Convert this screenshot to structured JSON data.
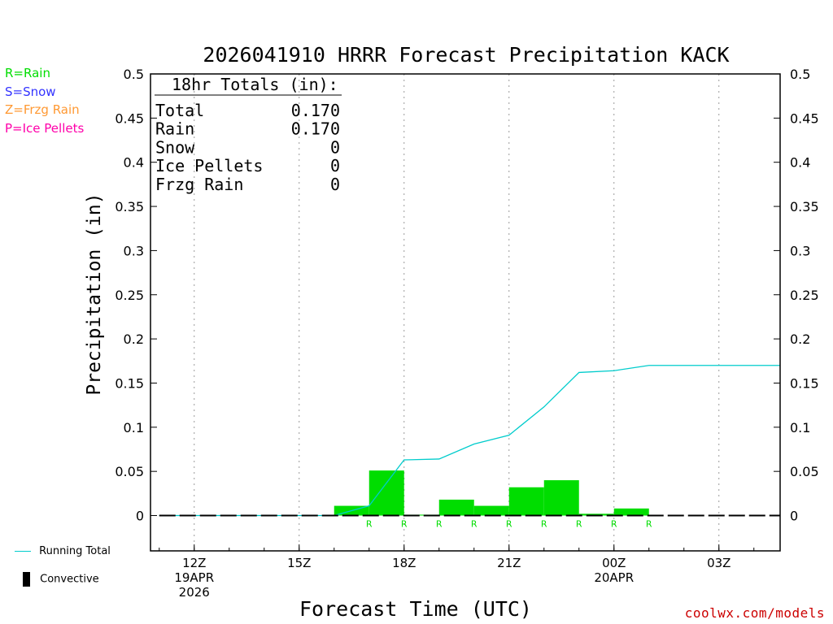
{
  "chart_data": {
    "type": "bar",
    "title": "2026041910 HRRR Forecast Precipitation KACK",
    "xlabel": "Forecast Time (UTC)",
    "ylabel": "Precipitation (in)",
    "ylim": [
      -0.04,
      0.5
    ],
    "yticks": [
      0,
      0.05,
      0.1,
      0.15,
      0.2,
      0.25,
      0.3,
      0.35,
      0.4,
      0.45,
      0.5
    ],
    "ytick_labels": [
      "0",
      "0.05",
      "0.1",
      "0.15",
      "0.2",
      "0.25",
      "0.3",
      "0.35",
      "0.4",
      "0.45",
      "0.5"
    ],
    "xlim_hours": [
      10.75,
      28.75
    ],
    "xticks": [
      {
        "hour": 12,
        "lines": [
          "12Z",
          "19APR",
          "2026"
        ]
      },
      {
        "hour": 15,
        "lines": [
          "15Z"
        ]
      },
      {
        "hour": 18,
        "lines": [
          "18Z"
        ]
      },
      {
        "hour": 21,
        "lines": [
          "21Z"
        ]
      },
      {
        "hour": 24,
        "lines": [
          "00Z",
          "20APR"
        ]
      },
      {
        "hour": 27,
        "lines": [
          "03Z"
        ]
      }
    ],
    "grid": "vertical dotted at major ticks",
    "bar_color": "#00dd00",
    "line_color": "#00cccc",
    "hourly_precip": [
      {
        "hour": 17,
        "value": 0.011,
        "type": "R"
      },
      {
        "hour": 18,
        "value": 0.051,
        "type": "R"
      },
      {
        "hour": 19,
        "value": 0.001,
        "type": "R"
      },
      {
        "hour": 20,
        "value": 0.018,
        "type": "R"
      },
      {
        "hour": 21,
        "value": 0.011,
        "type": "R"
      },
      {
        "hour": 22,
        "value": 0.032,
        "type": "R"
      },
      {
        "hour": 23,
        "value": 0.04,
        "type": "R"
      },
      {
        "hour": 24,
        "value": 0.002,
        "type": "R"
      },
      {
        "hour": 25,
        "value": 0.008,
        "type": "R"
      }
    ],
    "running_total": {
      "name": "Running Total",
      "x": [
        11,
        12,
        13,
        14,
        15,
        16,
        17,
        18,
        19,
        20,
        21,
        22,
        23,
        24,
        25,
        26,
        27,
        28,
        28.75
      ],
      "y": [
        0,
        0,
        0,
        0,
        0,
        0,
        0.011,
        0.063,
        0.064,
        0.081,
        0.091,
        0.123,
        0.162,
        0.164,
        0.17,
        0.17,
        0.17,
        0.17,
        0.17
      ]
    }
  },
  "totals_box": {
    "header": "18hr Totals (in):",
    "rows": [
      {
        "label": "Total",
        "value": "0.170"
      },
      {
        "label": "Rain",
        "value": "0.170"
      },
      {
        "label": "Snow",
        "value": "0"
      },
      {
        "label": "Ice Pellets",
        "value": "0"
      },
      {
        "label": "Frzg Rain",
        "value": "0"
      }
    ]
  },
  "type_legend": [
    {
      "text": "R=Rain",
      "color": "#00dd00"
    },
    {
      "text": "S=Snow",
      "color": "#3333ff"
    },
    {
      "text": "Z=Frzg Rain",
      "color": "#ff9933"
    },
    {
      "text": "P=Ice Pellets",
      "color": "#ff00aa"
    }
  ],
  "series_legend": {
    "running_total": "Running Total",
    "convective": "Convective"
  },
  "credit": "coolwx.com/models"
}
